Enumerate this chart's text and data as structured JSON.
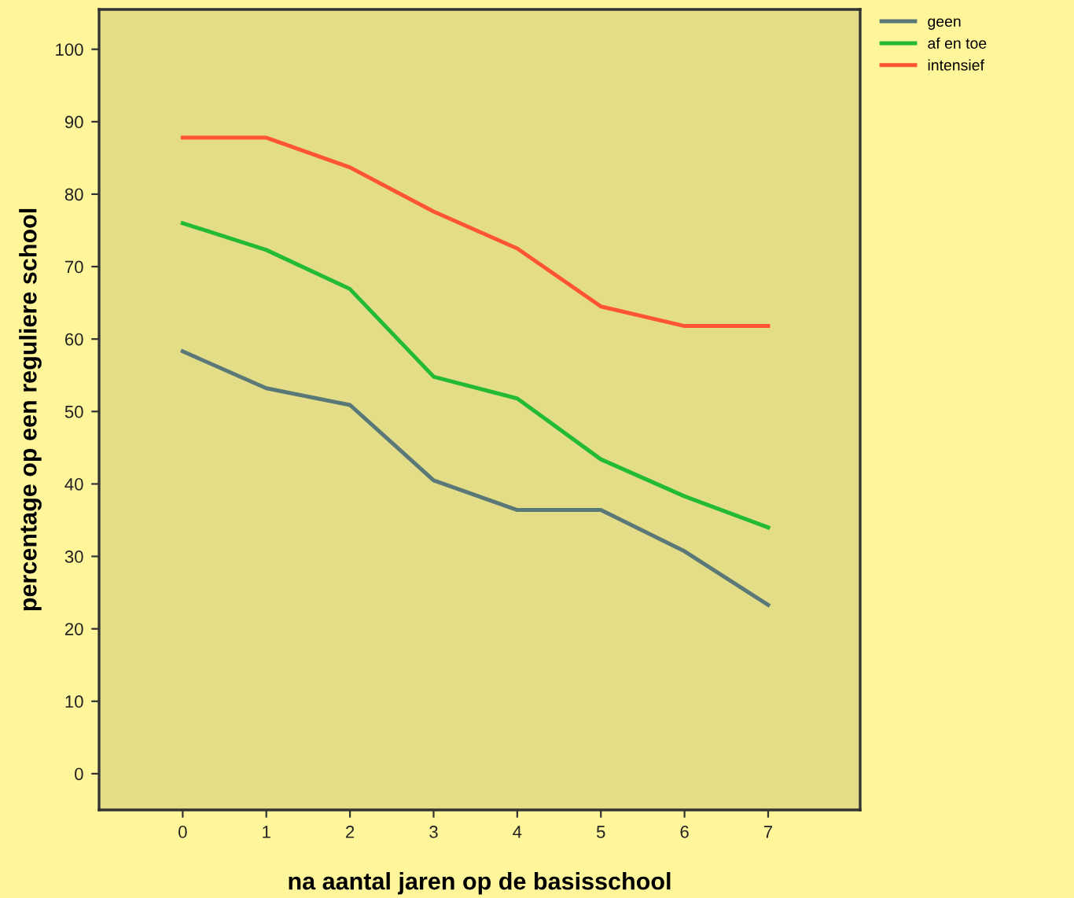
{
  "chart_data": {
    "type": "line",
    "xlabel": "na aantal jaren op de basisschool",
    "ylabel": "percentage op een reguliere school",
    "x": [
      0,
      1,
      2,
      3,
      4,
      5,
      6,
      7
    ],
    "series": [
      {
        "name": "geen",
        "color": "#5b7878",
        "values": [
          58.3,
          53.2,
          50.9,
          40.5,
          36.4,
          36.4,
          30.7,
          23.3
        ]
      },
      {
        "name": "af en toe",
        "color": "#22bb33",
        "values": [
          76.0,
          72.3,
          66.9,
          54.8,
          51.8,
          43.4,
          38.3,
          34.0
        ]
      },
      {
        "name": "intensief",
        "color": "#ff5533",
        "values": [
          87.8,
          87.8,
          83.7,
          77.6,
          72.5,
          64.5,
          61.8,
          61.8
        ]
      }
    ],
    "xlim": [
      -1,
      8.1
    ],
    "ylim": [
      -5,
      105.5
    ],
    "xticks": [
      0,
      1,
      2,
      3,
      4,
      5,
      6,
      7
    ],
    "yticks": [
      0,
      10,
      20,
      30,
      40,
      50,
      60,
      70,
      80,
      90,
      100
    ],
    "grid": false,
    "legend": "top right",
    "marker": "none",
    "line_style": "solid"
  }
}
